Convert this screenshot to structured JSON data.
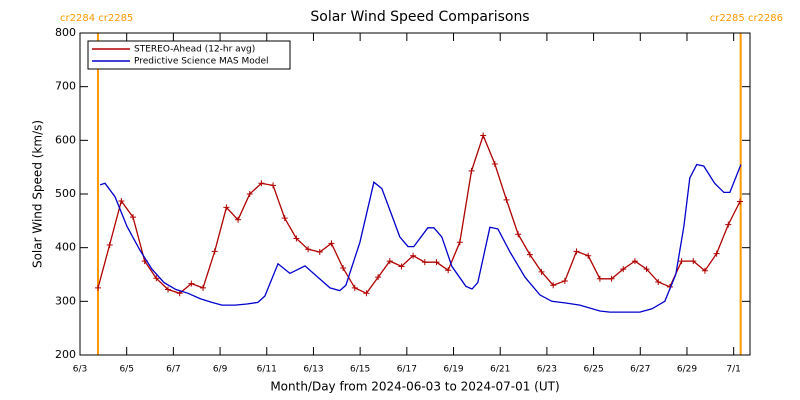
{
  "chart_data": {
    "type": "line",
    "title": "Solar Wind Speed Comparisons",
    "xlabel": "Month/Day from 2024-06-03 to 2024-07-01 (UT)",
    "ylabel": "Solar Wind Speed (km/s)",
    "xlim": [
      0,
      28.7
    ],
    "ylim": [
      200,
      800
    ],
    "xticks": [
      {
        "value": 0,
        "label": "6/3"
      },
      {
        "value": 2,
        "label": "6/5"
      },
      {
        "value": 4,
        "label": "6/7"
      },
      {
        "value": 6,
        "label": "6/9"
      },
      {
        "value": 8,
        "label": "6/11"
      },
      {
        "value": 10,
        "label": "6/13"
      },
      {
        "value": 12,
        "label": "6/15"
      },
      {
        "value": 14,
        "label": "6/17"
      },
      {
        "value": 16,
        "label": "6/19"
      },
      {
        "value": 18,
        "label": "6/21"
      },
      {
        "value": 20,
        "label": "6/23"
      },
      {
        "value": 22,
        "label": "6/25"
      },
      {
        "value": 24,
        "label": "6/27"
      },
      {
        "value": 26,
        "label": "6/29"
      },
      {
        "value": 28,
        "label": "7/1"
      }
    ],
    "yticks": [
      200,
      300,
      400,
      500,
      600,
      700,
      800
    ],
    "legend": "upper left",
    "annotations": [
      {
        "text": "cr2284 cr2285",
        "x": 0.77,
        "color": "#ff9900"
      },
      {
        "text": "cr2285 cr2286",
        "x": 28.3,
        "color": "#ff9900"
      }
    ],
    "series": [
      {
        "name": "STEREO-Ahead (12-hr avg)",
        "color": "#b00000",
        "marker": "+",
        "x": [
          0.77,
          1.27,
          1.77,
          2.27,
          2.77,
          3.27,
          3.77,
          4.27,
          4.77,
          5.27,
          5.77,
          6.27,
          6.77,
          7.27,
          7.77,
          8.27,
          8.77,
          9.27,
          9.77,
          10.27,
          10.77,
          11.27,
          11.77,
          12.27,
          12.77,
          13.27,
          13.77,
          14.27,
          14.77,
          15.27,
          15.77,
          16.27,
          16.77,
          17.27,
          17.77,
          18.27,
          18.77,
          19.27,
          19.77,
          20.27,
          20.77,
          21.27,
          21.77,
          22.27,
          22.77,
          23.27,
          23.77,
          24.27,
          24.77,
          25.27,
          25.77,
          26.27,
          26.77,
          27.27,
          27.77,
          28.27
        ],
        "values": [
          325,
          405,
          487,
          457,
          375,
          343,
          322,
          315,
          333,
          325,
          393,
          475,
          452,
          500,
          520,
          516,
          455,
          417,
          397,
          392,
          408,
          362,
          325,
          315,
          345,
          375,
          365,
          385,
          373,
          373,
          358,
          410,
          543,
          609,
          556,
          489,
          425,
          387,
          355,
          330,
          338,
          393,
          385,
          342,
          342,
          360,
          375,
          360,
          336,
          327,
          375,
          375,
          357,
          389,
          443,
          486
        ]
      },
      {
        "name": "Predictive Science MAS Model",
        "color": "#0000cc",
        "x": [
          0.86,
          1.07,
          1.5,
          2.01,
          2.57,
          3.08,
          3.6,
          4.11,
          4.63,
          5.14,
          5.65,
          6.08,
          6.64,
          7.15,
          7.62,
          7.92,
          8.48,
          8.99,
          9.64,
          10.19,
          10.71,
          11.13,
          11.39,
          11.99,
          12.59,
          12.93,
          13.36,
          13.7,
          14.05,
          14.3,
          14.9,
          15.16,
          15.5,
          15.93,
          16.53,
          16.79,
          17.04,
          17.56,
          17.9,
          18.42,
          19.06,
          19.7,
          20.21,
          20.77,
          21.41,
          22.27,
          22.7,
          23.98,
          24.5,
          25.05,
          25.52,
          25.87,
          26.12,
          26.42,
          26.72,
          27.19,
          27.58,
          27.84,
          28.31
        ],
        "values": [
          517,
          520,
          495,
          440,
          395,
          360,
          335,
          322,
          315,
          305,
          298,
          293,
          293,
          295,
          298,
          310,
          370,
          352,
          366,
          345,
          325,
          320,
          330,
          410,
          522,
          510,
          460,
          420,
          402,
          402,
          437,
          437,
          420,
          365,
          328,
          323,
          335,
          438,
          435,
          392,
          345,
          312,
          300,
          297,
          293,
          282,
          280,
          280,
          286,
          300,
          350,
          440,
          530,
          555,
          552,
          520,
          503,
          503,
          555
        ]
      }
    ]
  }
}
